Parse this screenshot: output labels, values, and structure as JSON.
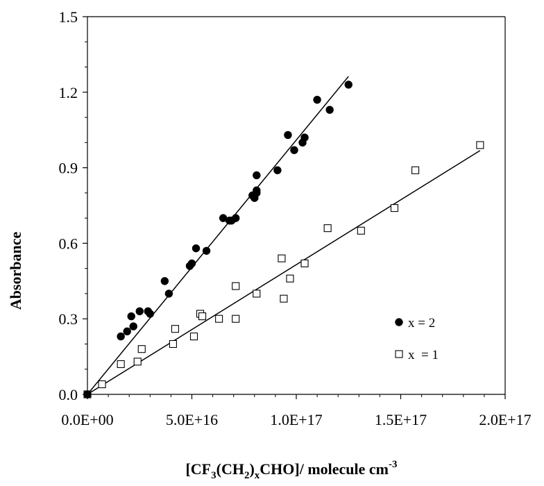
{
  "chart_data": {
    "type": "scatter",
    "xlabel": {
      "prefix": "[CF",
      "sub1": "3",
      "mid1": "(CH",
      "sub2": "2",
      "mid2": ")",
      "sub3": "x",
      "mid3": "CHO]/ molecule cm",
      "sup": "-3"
    },
    "ylabel": "Absorbance",
    "xlim": [
      0,
      2e+17
    ],
    "ylim": [
      0,
      1.5
    ],
    "x_ticks": [
      {
        "value": 0,
        "label": "0.0E+00"
      },
      {
        "value": 5e+16,
        "label": "5.0E+16"
      },
      {
        "value": 1e+17,
        "label": "1.0E+17"
      },
      {
        "value": 1.5e+17,
        "label": "1.5E+17"
      },
      {
        "value": 2e+17,
        "label": "2.0E+17"
      }
    ],
    "y_ticks": [
      {
        "value": 0.0,
        "label": "0.0"
      },
      {
        "value": 0.3,
        "label": "0.3"
      },
      {
        "value": 0.6,
        "label": "0.6"
      },
      {
        "value": 0.9,
        "label": "0.9"
      },
      {
        "value": 1.2,
        "label": "1.2"
      },
      {
        "value": 1.5,
        "label": "1.5"
      }
    ],
    "grid": false,
    "legend_position": "right",
    "series": [
      {
        "name": "x = 2",
        "marker": "filled-circle",
        "color": "#000000",
        "points": [
          [
            0,
            0
          ],
          [
            1.6e+16,
            0.23
          ],
          [
            1.9e+16,
            0.25
          ],
          [
            2.1e+16,
            0.31
          ],
          [
            2.2e+16,
            0.27
          ],
          [
            2.5e+16,
            0.33
          ],
          [
            2.9e+16,
            0.33
          ],
          [
            3e+16,
            0.32
          ],
          [
            3.7e+16,
            0.45
          ],
          [
            3.9e+16,
            0.4
          ],
          [
            4.9e+16,
            0.51
          ],
          [
            5e+16,
            0.52
          ],
          [
            5.2e+16,
            0.58
          ],
          [
            5.7e+16,
            0.57
          ],
          [
            6.5e+16,
            0.7
          ],
          [
            6.8e+16,
            0.69
          ],
          [
            6.9e+16,
            0.69
          ],
          [
            7.1e+16,
            0.7
          ],
          [
            7.9e+16,
            0.79
          ],
          [
            8e+16,
            0.78
          ],
          [
            8.1e+16,
            0.8
          ],
          [
            8.1e+16,
            0.81
          ],
          [
            8.1e+16,
            0.87
          ],
          [
            9.1e+16,
            0.89
          ],
          [
            9.6e+16,
            1.03
          ],
          [
            9.9e+16,
            0.97
          ],
          [
            1.03e+17,
            1.0
          ],
          [
            1.04e+17,
            1.02
          ],
          [
            1.1e+17,
            1.17
          ],
          [
            1.16e+17,
            1.13
          ],
          [
            1.25e+17,
            1.23
          ]
        ],
        "fit": {
          "x_start": 0,
          "x_end": 1.25e+17,
          "slope": 1.01e-17,
          "intercept": 0
        }
      },
      {
        "name": "x  = 1",
        "marker": "open-square",
        "color": "#000000",
        "points": [
          [
            0,
            0
          ],
          [
            7000000000000000.0,
            0.04
          ],
          [
            1.6e+16,
            0.12
          ],
          [
            2.4e+16,
            0.13
          ],
          [
            2.6e+16,
            0.18
          ],
          [
            4.1e+16,
            0.2
          ],
          [
            4.2e+16,
            0.26
          ],
          [
            5.1e+16,
            0.23
          ],
          [
            5.4e+16,
            0.32
          ],
          [
            5.5e+16,
            0.31
          ],
          [
            6.3e+16,
            0.3
          ],
          [
            7.1e+16,
            0.3
          ],
          [
            7.1e+16,
            0.43
          ],
          [
            8.1e+16,
            0.4
          ],
          [
            9.3e+16,
            0.54
          ],
          [
            9.4e+16,
            0.38
          ],
          [
            9.7e+16,
            0.46
          ],
          [
            1.04e+17,
            0.52
          ],
          [
            1.15e+17,
            0.66
          ],
          [
            1.31e+17,
            0.65
          ],
          [
            1.47e+17,
            0.74
          ],
          [
            1.57e+17,
            0.89
          ],
          [
            1.88e+17,
            0.99
          ]
        ],
        "fit": {
          "x_start": 0,
          "x_end": 1.88e+17,
          "slope": 5.15e-18,
          "intercept": 0
        }
      }
    ]
  }
}
